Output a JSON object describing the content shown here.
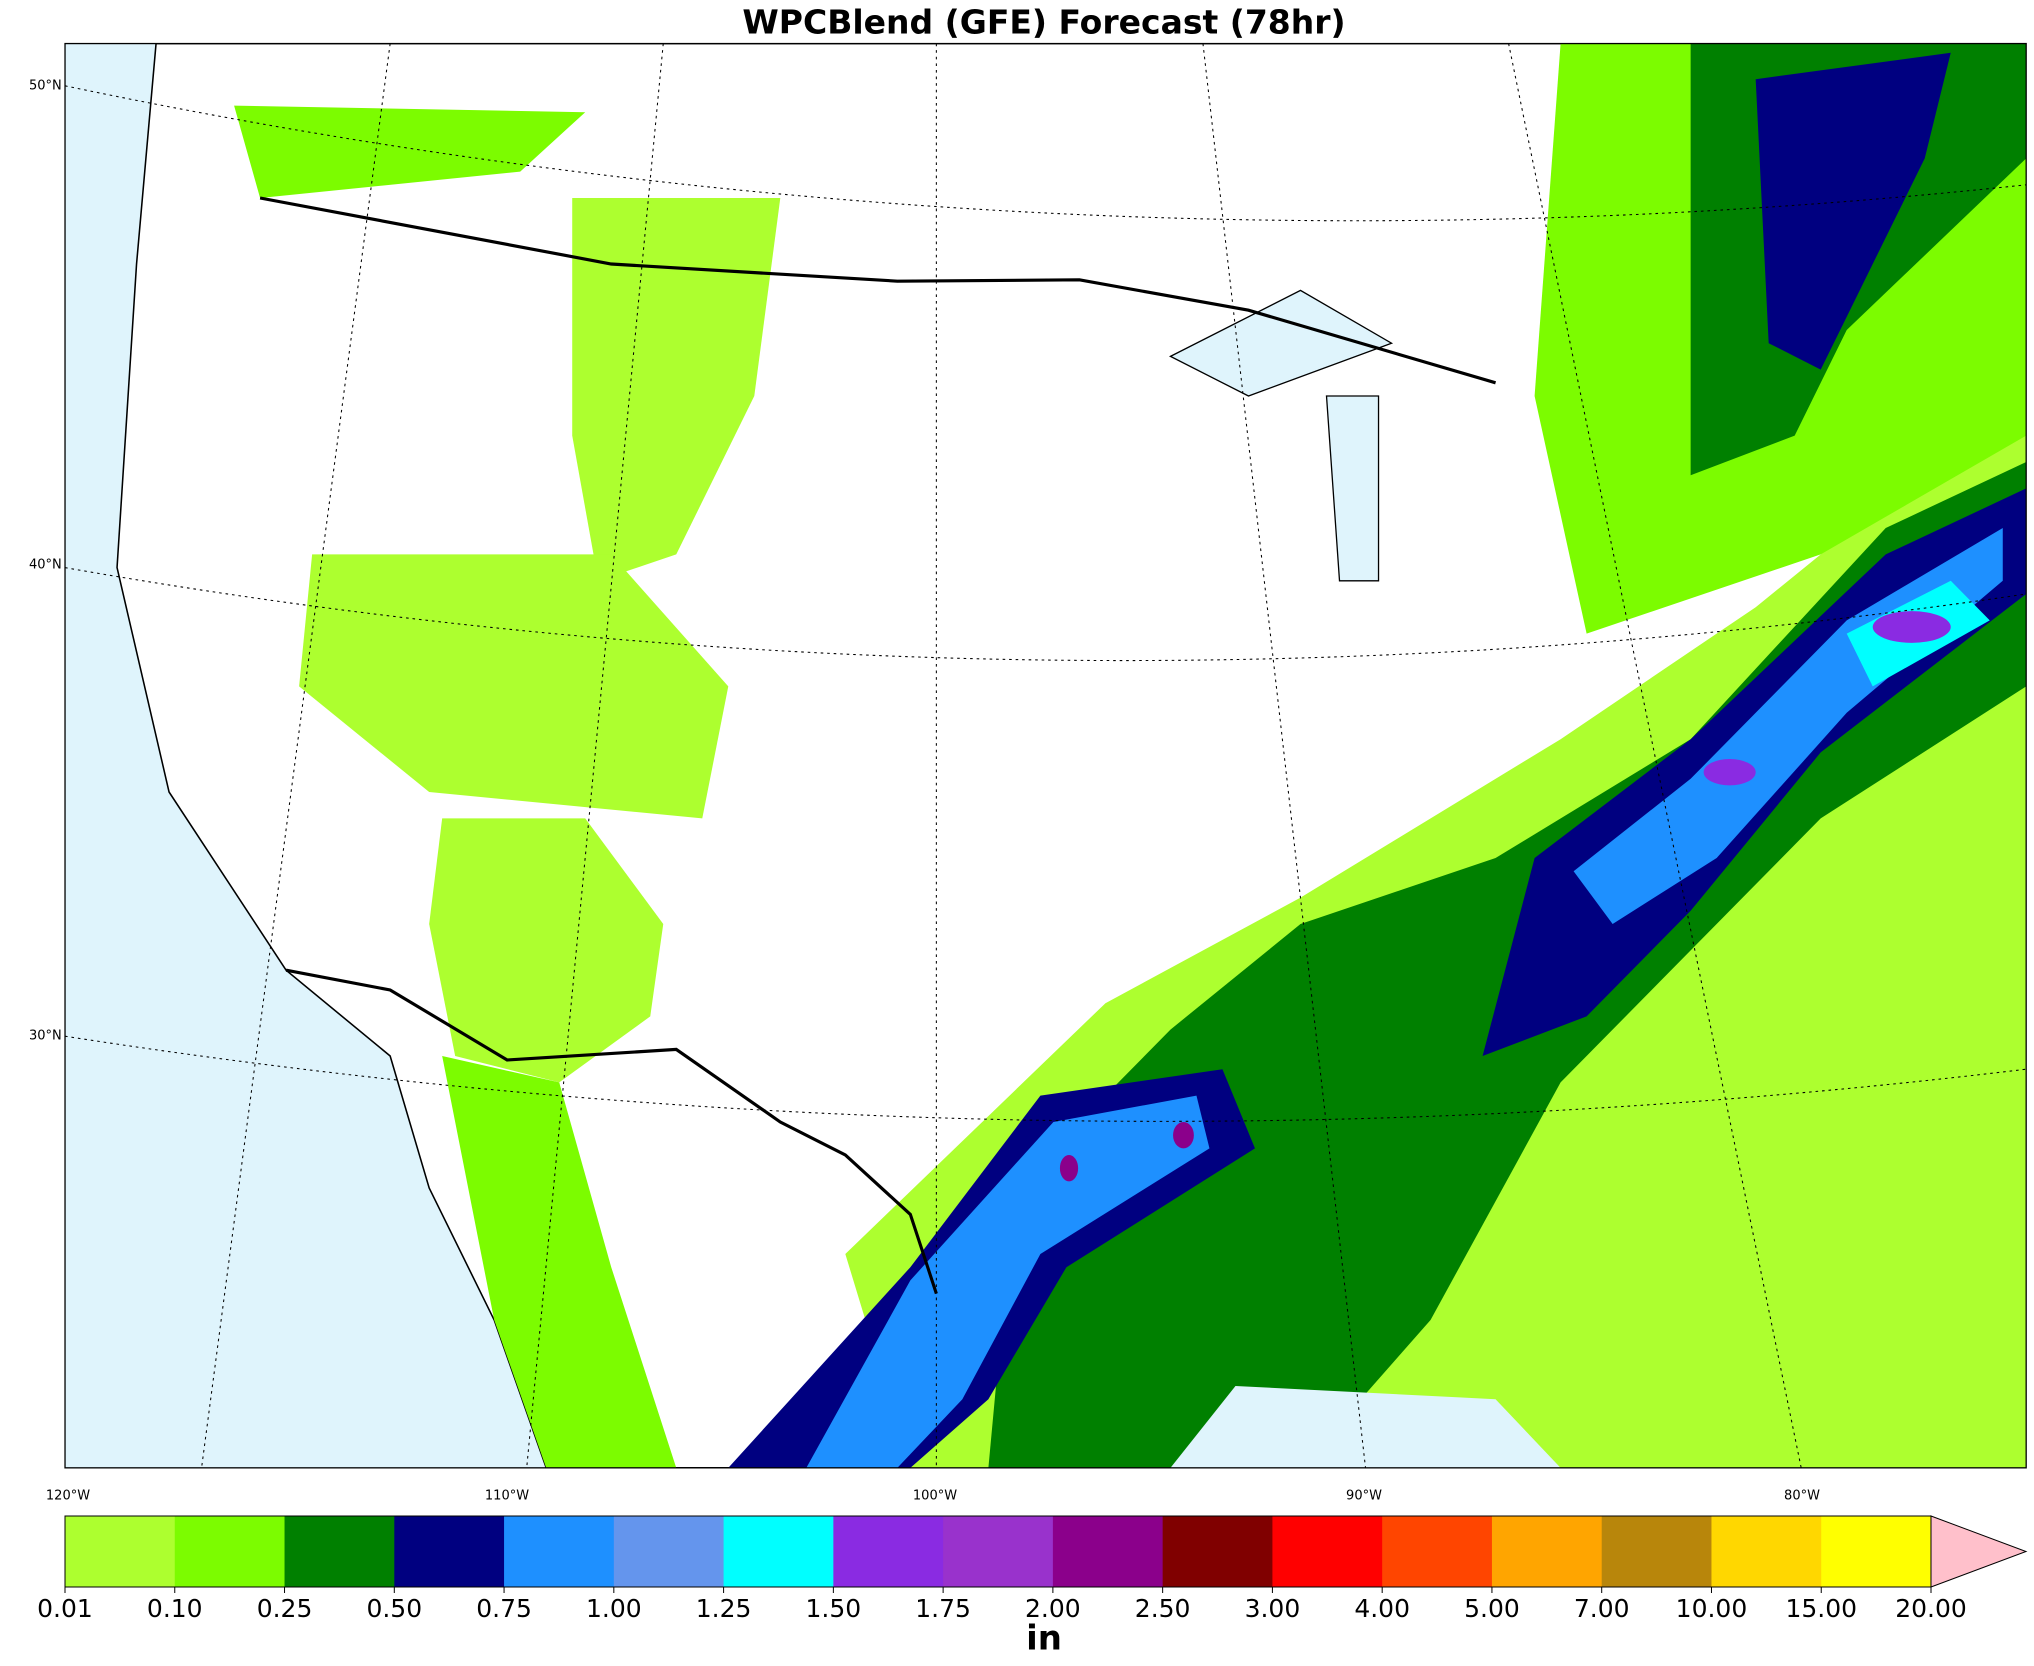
{
  "title": "WPCBlend (GFE) Forecast (78hr)",
  "map": {
    "lat_labels": [
      "50°N",
      "40°N",
      "30°N"
    ],
    "lon_labels": [
      "120°W",
      "110°W",
      "100°W",
      "90°W",
      "80°W"
    ]
  },
  "colorbar": {
    "colors": [
      "#adff2f",
      "#7cfc00",
      "#008000",
      "#000080",
      "#1e90ff",
      "#6495ed",
      "#00ffff",
      "#8a2be2",
      "#9932cc",
      "#8b008b",
      "#800000",
      "#ff0000",
      "#ff4500",
      "#ffa500",
      "#b8860b",
      "#ffd700",
      "#ffff00"
    ],
    "extend_color": "#ffc0cb",
    "ticks": [
      {
        "value": 0.01,
        "label": "0.01"
      },
      {
        "value": 0.1,
        "label": "0.10"
      },
      {
        "value": 0.25,
        "label": "0.25"
      },
      {
        "value": 0.5,
        "label": "0.50"
      },
      {
        "value": 0.75,
        "label": "0.75"
      },
      {
        "value": 1,
        "label": "1.00"
      },
      {
        "value": 1.25,
        "label": "1.25"
      },
      {
        "value": 1.5,
        "label": "1.50"
      },
      {
        "value": 1.75,
        "label": "1.75"
      },
      {
        "value": 2,
        "label": "2.00"
      },
      {
        "value": 2.5,
        "label": "2.50"
      },
      {
        "value": 3,
        "label": "3.00"
      },
      {
        "value": 4,
        "label": "4.00"
      },
      {
        "value": 5,
        "label": "5.00"
      },
      {
        "value": 7,
        "label": "7.00"
      },
      {
        "value": 10,
        "label": "10.00"
      },
      {
        "value": 15,
        "label": "15.00"
      },
      {
        "value": 20,
        "label": "20.00"
      }
    ],
    "unit": "in"
  }
}
